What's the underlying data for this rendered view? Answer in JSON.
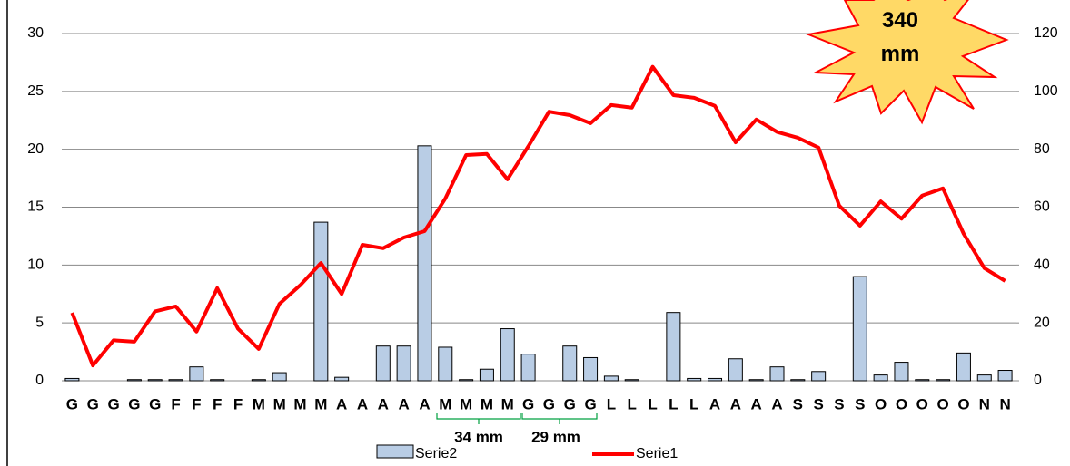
{
  "chart_data": {
    "type": "combo",
    "categories": [
      "G",
      "G",
      "G",
      "G",
      "G",
      "F",
      "F",
      "F",
      "F",
      "M",
      "M",
      "M",
      "M",
      "A",
      "A",
      "A",
      "A",
      "A",
      "M",
      "M",
      "M",
      "M",
      "G",
      "G",
      "G",
      "G",
      "L",
      "L",
      "L",
      "L",
      "L",
      "A",
      "A",
      "A",
      "A",
      "S",
      "S",
      "S",
      "S",
      "O",
      "O",
      "O",
      "O",
      "O",
      "N",
      "N"
    ],
    "series": [
      {
        "name": "Serie2",
        "type": "bar",
        "color": "#b9cde5",
        "axis": "y",
        "values": [
          0.2,
          0,
          0,
          0.1,
          0.1,
          0.1,
          1.2,
          0.1,
          0,
          0.1,
          0.7,
          0,
          13.7,
          0.3,
          0,
          3,
          3,
          20.3,
          2.9,
          0.1,
          1,
          4.5,
          2.3,
          0,
          3,
          2,
          0.4,
          0.1,
          0,
          5.9,
          0.2,
          0.2,
          1.9,
          0.1,
          1.2,
          0.1,
          0.8,
          0,
          9,
          0.5,
          1.6,
          0.1,
          0.1,
          2.4,
          0.5,
          0.9
        ]
      },
      {
        "name": "Serie1",
        "type": "line",
        "color": "#ff0000",
        "axis": "y2",
        "values": [
          23.5,
          5.3,
          14,
          13.5,
          24,
          25.7,
          17,
          32,
          18,
          11,
          26.6,
          33,
          40.7,
          30,
          47,
          45.8,
          49.5,
          51.7,
          63,
          78,
          78.4,
          69.6,
          81,
          93,
          91.8,
          89,
          95.3,
          94.4,
          108.5,
          98.7,
          97.8,
          95,
          82.4,
          90.3,
          86,
          84,
          80.6,
          60.5,
          53.6,
          62,
          56,
          64,
          66.5,
          50.8,
          38.9,
          34.5
        ]
      }
    ],
    "ylim": [
      0,
      30
    ],
    "yticks": [
      0,
      5,
      10,
      15,
      20,
      25,
      30
    ],
    "y2lim": [
      0,
      120
    ],
    "y2ticks": [
      0,
      20,
      40,
      60,
      80,
      100,
      120
    ],
    "grid": true,
    "annotations": [
      "34 mm",
      "29 mm",
      "340 mm"
    ]
  }
}
